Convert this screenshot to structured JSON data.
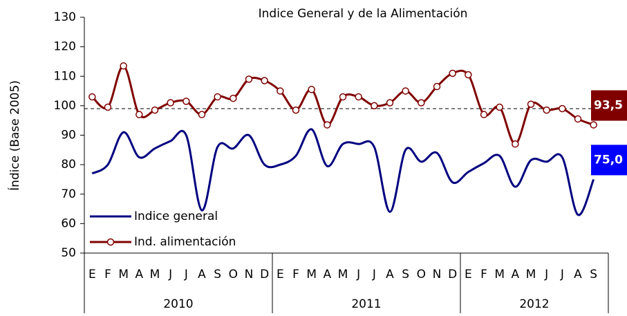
{
  "chart_data": {
    "type": "line",
    "title": "Indice General y de la Alimentación",
    "y_label": "Índice (Base 2005)",
    "categories": [
      "E",
      "F",
      "M",
      "A",
      "M",
      "J",
      "J",
      "A",
      "S",
      "O",
      "N",
      "D",
      "E",
      "F",
      "M",
      "A",
      "M",
      "J",
      "J",
      "A",
      "S",
      "O",
      "N",
      "D",
      "E",
      "F",
      "M",
      "A",
      "M",
      "J",
      "J",
      "A",
      "S"
    ],
    "groups": [
      {
        "label": "2010",
        "count": 12
      },
      {
        "label": "2011",
        "count": 12
      },
      {
        "label": "2012",
        "count": 9
      }
    ],
    "series": [
      {
        "name": "Indice general",
        "color": "#000080",
        "marker": false,
        "end_label": "75,0",
        "end_label_color": "#0000ff",
        "values": [
          77,
          80,
          91,
          82.5,
          85.5,
          88,
          90,
          64.5,
          86,
          85.5,
          90,
          80,
          80,
          83,
          92,
          79.5,
          87,
          87,
          86,
          64,
          85,
          81,
          84,
          74,
          77.5,
          80.5,
          83,
          72.5,
          81.5,
          81,
          82.5,
          63,
          75
        ]
      },
      {
        "name": "Ind. alimentación",
        "color": "#800000",
        "marker": true,
        "end_label": "93,5",
        "end_label_color": "#800000",
        "values": [
          103,
          99.5,
          113.5,
          97,
          98.5,
          101,
          101.5,
          97,
          103,
          102.5,
          109,
          108.5,
          105,
          98.5,
          105.5,
          93.5,
          103,
          103,
          100,
          101,
          105,
          101,
          106.5,
          111,
          110.5,
          97,
          99.5,
          87,
          100.5,
          98.5,
          99,
          95.5,
          93.5
        ]
      }
    ],
    "reference_line": 99,
    "ylim": [
      50,
      130
    ],
    "yticks": [
      50,
      60,
      70,
      80,
      90,
      100,
      110,
      120,
      130
    ],
    "legend": "lower left",
    "grid": false
  }
}
